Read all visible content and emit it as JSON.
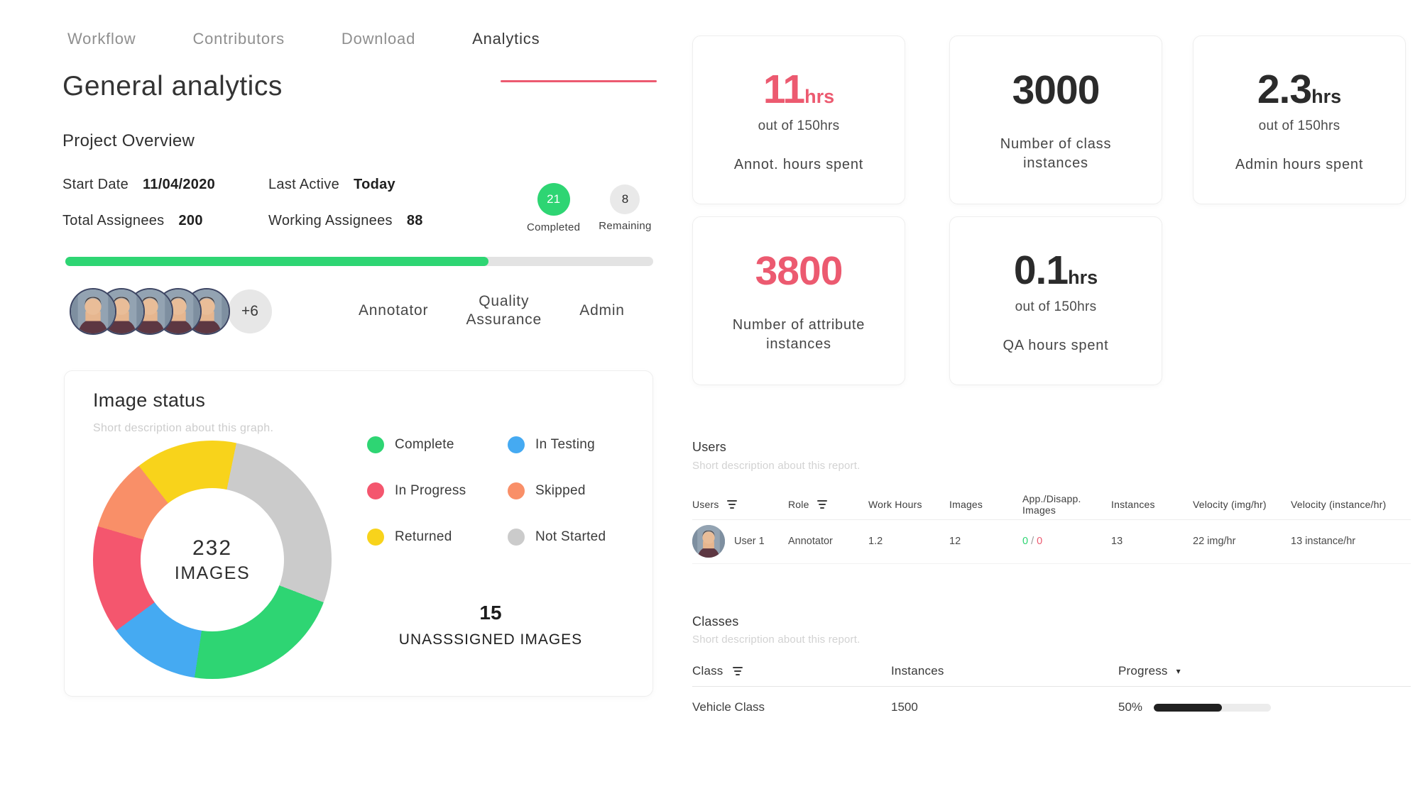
{
  "colors": {
    "accent": "#EC5A70",
    "green": "#2ED573",
    "blue": "#45AAF2",
    "pink": "#F4566E",
    "orange": "#F98F68",
    "yellow": "#F8D31B",
    "grey_seg": "#CBCBCB",
    "dark": "#2B2B2B"
  },
  "nav": {
    "items": [
      {
        "label": "Workflow",
        "active": false
      },
      {
        "label": "Contributors",
        "active": false
      },
      {
        "label": "Download",
        "active": false
      },
      {
        "label": "Analytics",
        "active": true
      }
    ]
  },
  "page_title": "General analytics",
  "overview": {
    "title": "Project Overview",
    "fields": [
      {
        "label": "Start Date",
        "value": "11/04/2020"
      },
      {
        "label": "Last Active",
        "value": "Today"
      },
      {
        "label": "Total Assignees",
        "value": "200"
      },
      {
        "label": "Working Assignees",
        "value": "88"
      }
    ],
    "completed": {
      "value": "21",
      "label": "Completed"
    },
    "remaining": {
      "value": "8",
      "label": "Remaining"
    },
    "progress_percent": 72
  },
  "team": {
    "avatar_count": 5,
    "more_label": "+6",
    "roles": [
      "Annotator",
      "Quality Assurance",
      "Admin"
    ]
  },
  "image_status": {
    "title": "Image status",
    "subtitle": "Short description about this graph.",
    "center_value": "232",
    "center_label": "IMAGES",
    "unassigned_value": "15",
    "unassigned_label": "UNASSSIGNED IMAGES"
  },
  "chart_data": {
    "type": "pie",
    "subtype": "donut",
    "title": "Image status",
    "center_label": "232 IMAGES",
    "total": 232,
    "start_angle_deg": -38,
    "legend_position": "right",
    "segments": [
      {
        "label": "Returned",
        "value": 32,
        "color": "#F8D31B"
      },
      {
        "label": "Not Started",
        "value": 64,
        "color": "#CBCBCB"
      },
      {
        "label": "Complete",
        "value": 50,
        "color": "#2ED573"
      },
      {
        "label": "In Testing",
        "value": 29,
        "color": "#45AAF2"
      },
      {
        "label": "In Progress",
        "value": 34,
        "color": "#F4566E"
      },
      {
        "label": "Skipped",
        "value": 23,
        "color": "#F98F68"
      }
    ]
  },
  "stat_cards": [
    {
      "value": "11",
      "unit": "hrs",
      "sub": "out of 150hrs",
      "label": "Annot. hours spent",
      "color": "#EC5A70"
    },
    {
      "value": "3000",
      "unit": "",
      "sub": "",
      "label": "Number of class instances",
      "color": "#2B2B2B"
    },
    {
      "value": "2.3",
      "unit": "hrs",
      "sub": "out of 150hrs",
      "label": "Admin hours spent",
      "color": "#2B2B2B"
    },
    {
      "value": "3800",
      "unit": "",
      "sub": "",
      "label": "Number of attribute instances",
      "color": "#EC5A70"
    },
    {
      "value": "0.1",
      "unit": "hrs",
      "sub": "out of 150hrs",
      "label": "QA hours spent",
      "color": "#2B2B2B"
    }
  ],
  "users_section": {
    "title": "Users",
    "subtitle": "Short description about this report.",
    "columns": [
      "Users",
      "Role",
      "Work Hours",
      "Images",
      "App./Disapp. Images",
      "Instances",
      "Velocity (img/hr)",
      "Velocity (instance/hr)"
    ],
    "rows": [
      {
        "name": "User 1",
        "role": "Annotator",
        "work_hours": "1.2",
        "images": "12",
        "approved": "0",
        "separator": "/",
        "disapproved": "0",
        "instances": "13",
        "velocity_img": "22 img/hr",
        "velocity_instance": "13 instance/hr"
      }
    ]
  },
  "classes_section": {
    "title": "Classes",
    "subtitle": "Short description about this report.",
    "columns": [
      "Class",
      "Instances",
      "Progress"
    ],
    "rows": [
      {
        "name": "Vehicle Class",
        "instances": "1500",
        "progress": "50%",
        "progress_fill": 58
      }
    ]
  }
}
